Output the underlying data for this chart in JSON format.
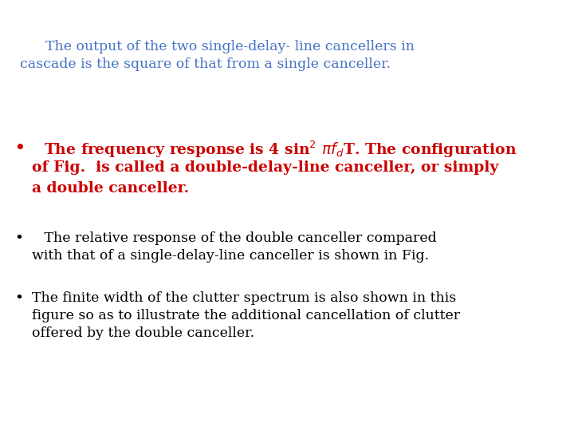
{
  "bg_color": "#ffffff",
  "intro_text_line1": "    The output of the two single-delay- line cancellers in",
  "intro_text_line2": "cascade is the square of that from a single canceller.",
  "intro_color": "#4472C4",
  "bullet1_line1": "The frequency response is 4 sin$^2$ $\\pi f_d$T. The configuration",
  "bullet1_line2": "of Fig.  is called a double-delay-line canceller, or simply",
  "bullet1_line3": "a double canceller.",
  "bullet1_color": "#CC0000",
  "bullet2_line1": " The relative response of the double canceller compared",
  "bullet2_line2": "with that of a single-delay-line canceller is shown in Fig.",
  "bullet2_color": "#000000",
  "bullet3_line1": "The finite width of the clutter spectrum is also shown in this",
  "bullet3_line2": "figure so as to illustrate the additional cancellation of clutter",
  "bullet3_line3": "offered by the double canceller.",
  "bullet3_color": "#000000",
  "font_family": "serif",
  "intro_fontsize": 12.5,
  "bullet_fontsize": 12.5,
  "bullet1_fontsize": 13.5
}
